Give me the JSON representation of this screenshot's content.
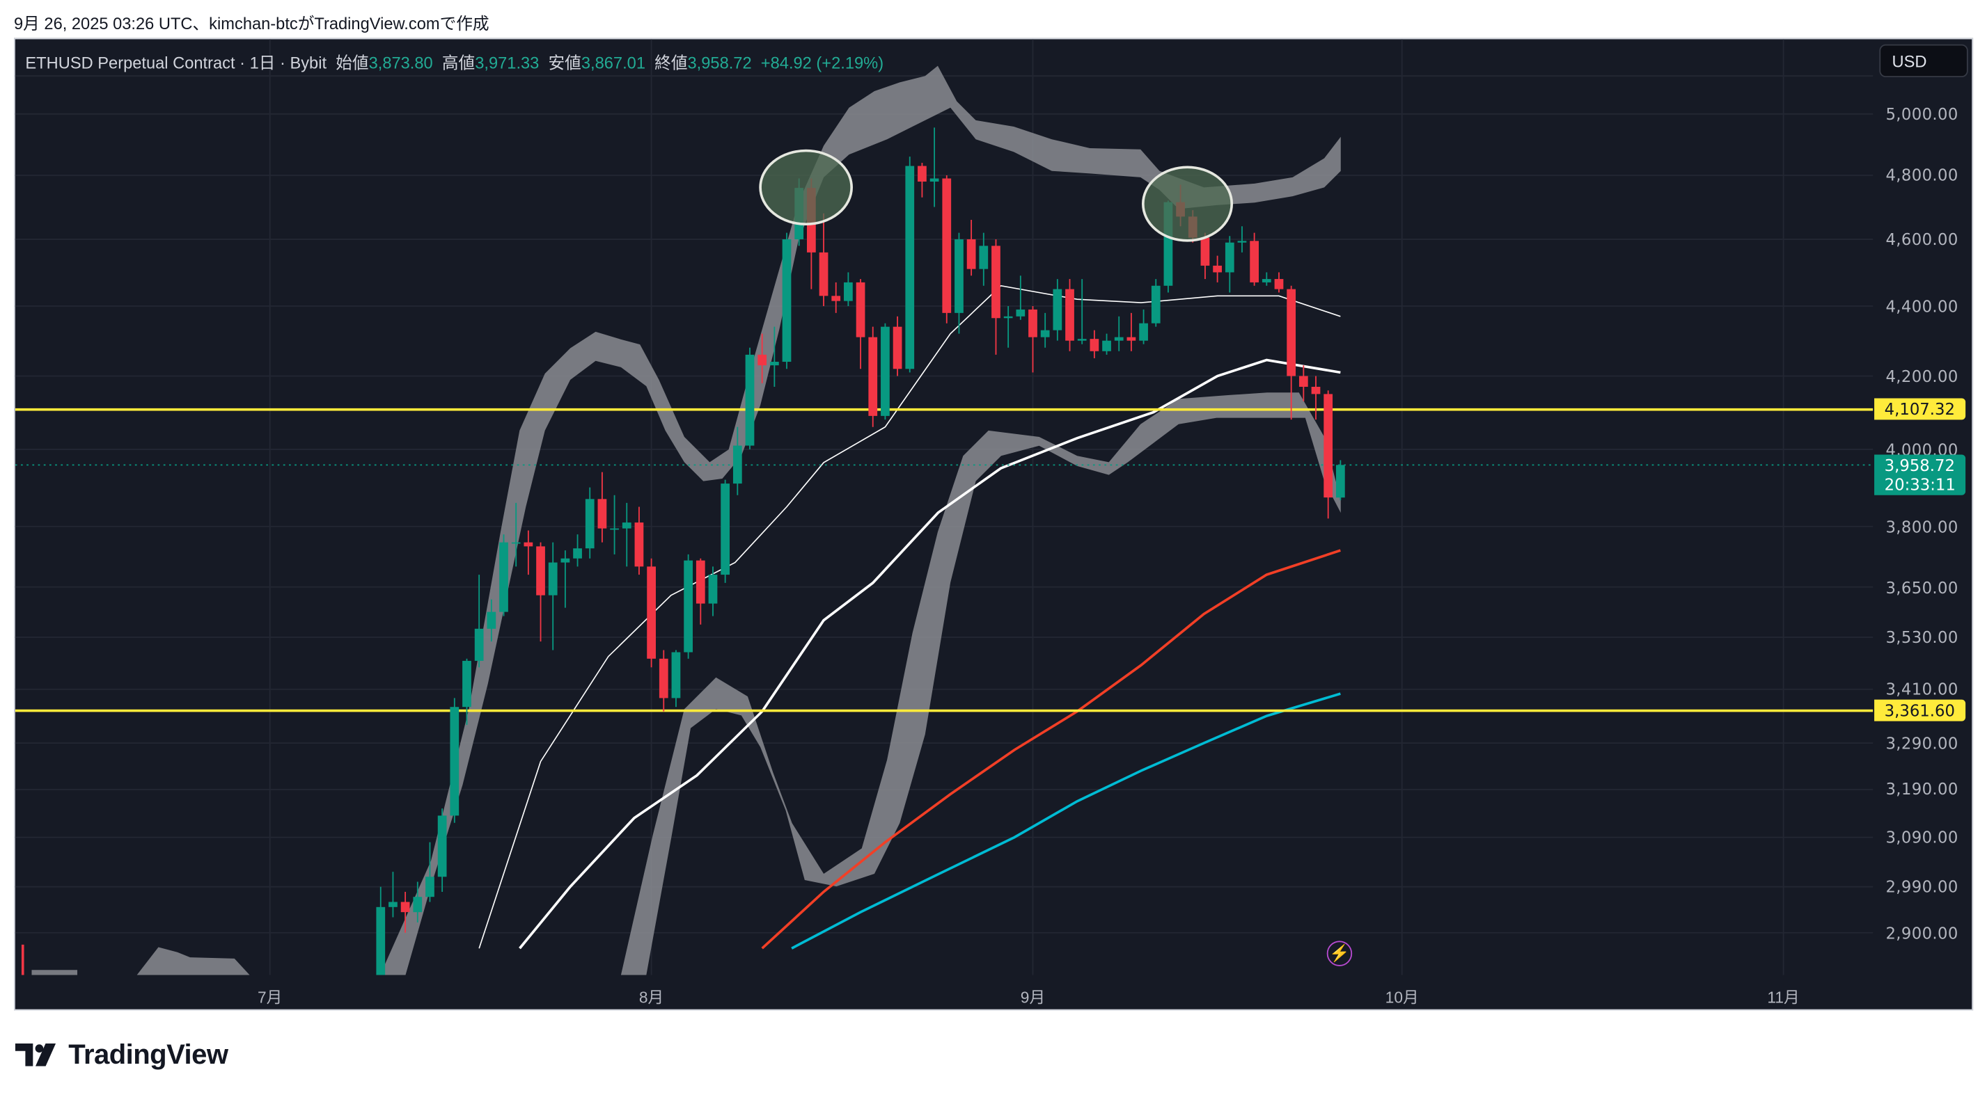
{
  "caption": "9月 26, 2025 03:26 UTC、kimchan-btcがTradingView.comで作成",
  "legend": {
    "symbol": "ETHUSD Perpetual Contract · 1日 · Bybit",
    "open_label": "始値",
    "open": "3,873.80",
    "high_label": "高値",
    "high": "3,971.33",
    "low_label": "安値",
    "low": "3,867.01",
    "close_label": "終値",
    "close": "3,958.72",
    "change": "+84.92 (+2.19%)"
  },
  "currency_button": "USD",
  "price_axis": [
    "5,000.00",
    "4,800.00",
    "4,600.00",
    "4,400.00",
    "4,200.00",
    "4,000.00",
    "3,800.00",
    "3,650.00",
    "3,530.00",
    "3,410.00",
    "3,290.00",
    "3,190.00",
    "3,090.00",
    "2,990.00",
    "2,900.00"
  ],
  "horizontal_lines": [
    {
      "label": "4,107.32"
    },
    {
      "label": "3,361.60"
    }
  ],
  "last_price": {
    "price": "3,958.72",
    "countdown": "20:33:11"
  },
  "date_axis": [
    "7月",
    "8月",
    "9月",
    "10月",
    "11月"
  ],
  "brand": "TradingView",
  "colors": {
    "up": "#089981",
    "down": "#f23645",
    "hline": "#ffeb3b",
    "bg": "#161a25",
    "ma_fast": "#ffffff",
    "ma_mid": "#ffffff",
    "ma_slow": "#f23f26",
    "ma_long": "#00bcd4"
  },
  "chart_data": {
    "type": "candlestick",
    "symbol": "ETHUSD",
    "interval": "1D",
    "scale": "log",
    "ylim": [
      2870,
      5100
    ],
    "ticks": [
      5000,
      4800,
      4600,
      4400,
      4200,
      4000,
      3800,
      3650,
      3530,
      3410,
      3290,
      3190,
      3090,
      2990,
      2900
    ],
    "hlines": [
      4107.32,
      3361.6
    ],
    "last": 3958.72,
    "x_ticks_day_index": [
      0,
      31,
      62,
      92,
      123
    ],
    "first_candle_day_index": 8,
    "candles_ohlc": [
      [
        2615,
        2790,
        2600,
        2770
      ],
      [
        2770,
        2990,
        2760,
        2950
      ],
      [
        2950,
        3020,
        2930,
        2960
      ],
      [
        2960,
        2980,
        2900,
        2940
      ],
      [
        2940,
        3000,
        2920,
        2970
      ],
      [
        2970,
        3080,
        2960,
        3010
      ],
      [
        3010,
        3150,
        2980,
        3135
      ],
      [
        3135,
        3390,
        3120,
        3370
      ],
      [
        3370,
        3480,
        3330,
        3475
      ],
      [
        3475,
        3680,
        3460,
        3550
      ],
      [
        3550,
        3620,
        3520,
        3590
      ],
      [
        3590,
        3780,
        3580,
        3760
      ],
      [
        3760,
        3860,
        3700,
        3760
      ],
      [
        3760,
        3790,
        3680,
        3750
      ],
      [
        3750,
        3760,
        3520,
        3630
      ],
      [
        3630,
        3760,
        3500,
        3710
      ],
      [
        3710,
        3740,
        3600,
        3720
      ],
      [
        3720,
        3780,
        3700,
        3745
      ],
      [
        3745,
        3900,
        3720,
        3870
      ],
      [
        3870,
        3940,
        3760,
        3795
      ],
      [
        3795,
        3880,
        3730,
        3795
      ],
      [
        3795,
        3860,
        3700,
        3810
      ],
      [
        3810,
        3850,
        3680,
        3700
      ],
      [
        3700,
        3720,
        3460,
        3480
      ],
      [
        3480,
        3500,
        3360,
        3390
      ],
      [
        3390,
        3500,
        3370,
        3495
      ],
      [
        3495,
        3730,
        3480,
        3715
      ],
      [
        3715,
        3720,
        3560,
        3610
      ],
      [
        3610,
        3700,
        3580,
        3680
      ],
      [
        3680,
        3920,
        3660,
        3910
      ],
      [
        3910,
        4060,
        3880,
        4010
      ],
      [
        4010,
        4280,
        4000,
        4260
      ],
      [
        4260,
        4320,
        4180,
        4230
      ],
      [
        4230,
        4340,
        4170,
        4240
      ],
      [
        4240,
        4620,
        4220,
        4600
      ],
      [
        4600,
        4790,
        4580,
        4760
      ],
      [
        4760,
        4790,
        4450,
        4560
      ],
      [
        4560,
        4680,
        4400,
        4430
      ],
      [
        4430,
        4470,
        4380,
        4415
      ],
      [
        4415,
        4500,
        4400,
        4470
      ],
      [
        4470,
        4480,
        4220,
        4310
      ],
      [
        4310,
        4340,
        4060,
        4090
      ],
      [
        4090,
        4350,
        4080,
        4340
      ],
      [
        4340,
        4370,
        4200,
        4220
      ],
      [
        4220,
        4860,
        4210,
        4830
      ],
      [
        4830,
        4840,
        4730,
        4780
      ],
      [
        4780,
        4955,
        4700,
        4790
      ],
      [
        4790,
        4800,
        4350,
        4380
      ],
      [
        4380,
        4620,
        4320,
        4600
      ],
      [
        4600,
        4660,
        4490,
        4510
      ],
      [
        4510,
        4620,
        4460,
        4580
      ],
      [
        4580,
        4600,
        4260,
        4365
      ],
      [
        4365,
        4400,
        4280,
        4370
      ],
      [
        4370,
        4490,
        4360,
        4390
      ],
      [
        4390,
        4400,
        4210,
        4310
      ],
      [
        4310,
        4380,
        4280,
        4330
      ],
      [
        4330,
        4480,
        4300,
        4450
      ],
      [
        4450,
        4480,
        4270,
        4300
      ],
      [
        4300,
        4480,
        4290,
        4305
      ],
      [
        4305,
        4330,
        4250,
        4270
      ],
      [
        4270,
        4320,
        4260,
        4300
      ],
      [
        4300,
        4370,
        4270,
        4310
      ],
      [
        4310,
        4380,
        4270,
        4300
      ],
      [
        4300,
        4390,
        4290,
        4350
      ],
      [
        4350,
        4480,
        4340,
        4460
      ],
      [
        4460,
        4720,
        4440,
        4715
      ],
      [
        4715,
        4770,
        4640,
        4670
      ],
      [
        4670,
        4690,
        4590,
        4605
      ],
      [
        4605,
        4620,
        4480,
        4520
      ],
      [
        4520,
        4550,
        4470,
        4500
      ],
      [
        4500,
        4610,
        4440,
        4590
      ],
      [
        4590,
        4640,
        4560,
        4595
      ],
      [
        4595,
        4620,
        4460,
        4470
      ],
      [
        4470,
        4500,
        4460,
        4480
      ],
      [
        4480,
        4500,
        4440,
        4450
      ],
      [
        4450,
        4460,
        4080,
        4200
      ],
      [
        4200,
        4230,
        4130,
        4170
      ],
      [
        4170,
        4200,
        4080,
        4150
      ],
      [
        4150,
        4160,
        3820,
        3874
      ],
      [
        3873.8,
        3971.33,
        3867.01,
        3958.72
      ]
    ],
    "series": [
      {
        "name": "MA fast",
        "color": "#ffffff",
        "width": 0.9,
        "points": [
          [
            17,
            2870
          ],
          [
            22,
            3250
          ],
          [
            27.5,
            3485
          ],
          [
            32.6,
            3630
          ],
          [
            37.8,
            3710
          ],
          [
            42,
            3850
          ],
          [
            45,
            3965
          ],
          [
            50,
            4060
          ],
          [
            55.3,
            4320
          ],
          [
            59.4,
            4460
          ],
          [
            65.6,
            4420
          ],
          [
            70.8,
            4410
          ],
          [
            77,
            4430
          ],
          [
            82,
            4430
          ],
          [
            87,
            4370
          ]
        ]
      },
      {
        "name": "MA mid",
        "color": "#ffffff",
        "width": 2,
        "points": [
          [
            20.3,
            2870
          ],
          [
            24.4,
            2990
          ],
          [
            29.6,
            3130
          ],
          [
            34.7,
            3220
          ],
          [
            40,
            3360
          ],
          [
            45,
            3570
          ],
          [
            49,
            3660
          ],
          [
            54.3,
            3835
          ],
          [
            59.4,
            3950
          ],
          [
            65.6,
            4030
          ],
          [
            71.8,
            4100
          ],
          [
            77,
            4200
          ],
          [
            81,
            4245
          ],
          [
            87,
            4210
          ]
        ]
      },
      {
        "name": "MA slow",
        "color": "#f23f26",
        "width": 2,
        "points": [
          [
            40,
            2870
          ],
          [
            45,
            2980
          ],
          [
            50,
            3080
          ],
          [
            55.3,
            3180
          ],
          [
            60.5,
            3275
          ],
          [
            65.6,
            3360
          ],
          [
            70.8,
            3465
          ],
          [
            75.9,
            3585
          ],
          [
            81,
            3680
          ],
          [
            87,
            3740
          ]
        ]
      },
      {
        "name": "MA long",
        "color": "#00bcd4",
        "width": 2,
        "points": [
          [
            42.4,
            2870
          ],
          [
            48,
            2940
          ],
          [
            54.3,
            3015
          ],
          [
            60.5,
            3090
          ],
          [
            65.6,
            3165
          ],
          [
            70.8,
            3230
          ],
          [
            75.9,
            3290
          ],
          [
            81,
            3350
          ],
          [
            87,
            3400
          ]
        ]
      }
    ]
  }
}
